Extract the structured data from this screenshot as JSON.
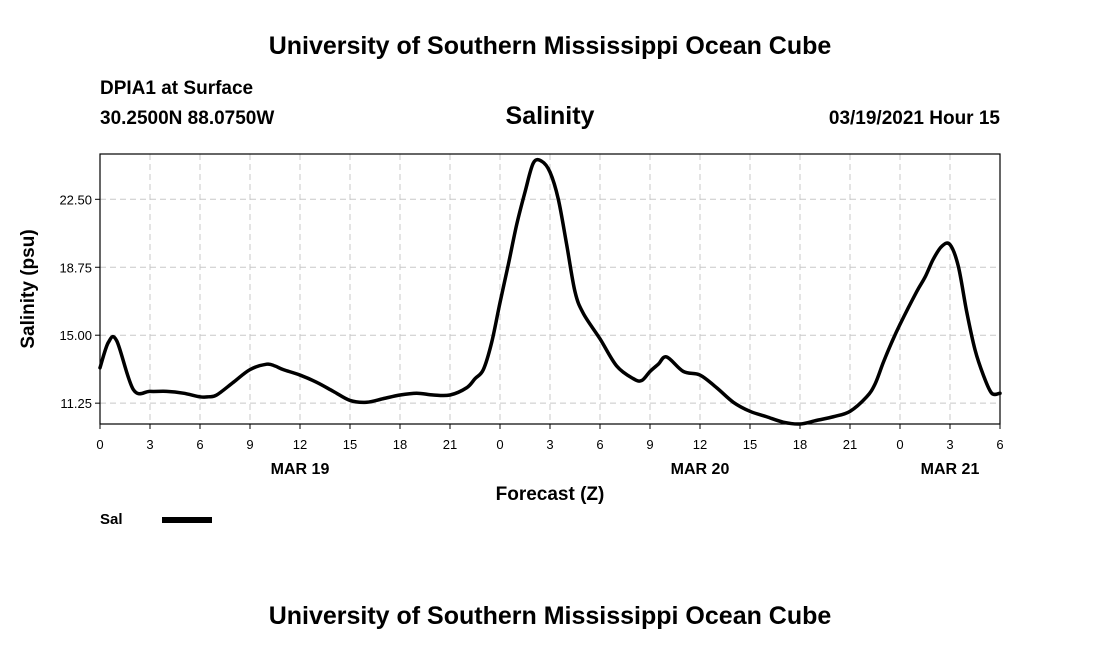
{
  "header_top": "University of Southern Mississippi Ocean Cube",
  "header_bottom": "University of Southern Mississippi Ocean Cube",
  "station": "DPIA1 at Surface",
  "location": "30.2500N 88.0750W",
  "date_info": "03/19/2021 Hour 15",
  "colors": {
    "line": "#000000",
    "grid": "#c8c8c8"
  },
  "chart_data": {
    "type": "line",
    "title": "Salinity",
    "xlabel": "Forecast (Z)",
    "ylabel": "Salinity (psu)",
    "xlim": [
      0,
      54
    ],
    "ylim": [
      10.1,
      25.0
    ],
    "yticks": [
      11.25,
      15.0,
      18.75,
      22.5
    ],
    "ytick_labels": [
      "11.25",
      "15.00",
      "18.75",
      "22.50"
    ],
    "xticks": [
      0,
      3,
      6,
      9,
      12,
      15,
      18,
      21,
      24,
      27,
      30,
      33,
      36,
      39,
      42,
      45,
      48,
      51,
      54
    ],
    "xtick_labels": [
      "0",
      "3",
      "6",
      "9",
      "12",
      "15",
      "18",
      "21",
      "0",
      "3",
      "6",
      "9",
      "12",
      "15",
      "18",
      "21",
      "0",
      "3",
      "6"
    ],
    "date_labels": [
      {
        "x": 12,
        "label": "MAR 19"
      },
      {
        "x": 36,
        "label": "MAR 20"
      },
      {
        "x": 51,
        "label": "MAR 21"
      }
    ],
    "grid": true,
    "legend_position": "bottom-left",
    "series": [
      {
        "name": "Sal",
        "x": [
          0,
          0.5,
          1,
          2,
          3,
          4,
          5,
          6,
          6.5,
          7,
          8,
          9,
          10,
          10.5,
          11,
          12,
          13,
          14,
          15,
          16,
          17,
          18,
          19,
          20,
          21,
          22,
          22.5,
          23,
          23.5,
          24,
          24.5,
          25,
          25.5,
          26,
          26.5,
          27,
          27.5,
          28,
          28.5,
          29,
          30,
          31,
          32,
          32.5,
          33,
          33.5,
          34,
          35,
          36,
          37,
          38,
          39,
          40,
          41,
          42,
          43,
          44,
          45,
          46,
          46.5,
          47,
          47.5,
          48,
          49,
          49.5,
          50,
          50.5,
          51,
          51.5,
          52,
          52.5,
          53,
          53.5,
          54
        ],
        "values": [
          13.2,
          14.6,
          14.7,
          12.0,
          11.9,
          11.9,
          11.8,
          11.6,
          11.6,
          11.7,
          12.4,
          13.1,
          13.4,
          13.3,
          13.1,
          12.8,
          12.4,
          11.9,
          11.4,
          11.3,
          11.5,
          11.7,
          11.8,
          11.7,
          11.7,
          12.1,
          12.6,
          13.1,
          14.6,
          16.8,
          18.9,
          21.1,
          22.9,
          24.5,
          24.6,
          24.0,
          22.5,
          20.0,
          17.4,
          16.2,
          14.8,
          13.3,
          12.6,
          12.5,
          13.0,
          13.4,
          13.8,
          13.0,
          12.8,
          12.1,
          11.3,
          10.8,
          10.5,
          10.2,
          10.1,
          10.3,
          10.5,
          10.8,
          11.6,
          12.3,
          13.5,
          14.6,
          15.6,
          17.4,
          18.2,
          19.2,
          19.9,
          20.0,
          18.8,
          16.3,
          14.2,
          12.8,
          11.8,
          11.8
        ]
      }
    ]
  }
}
